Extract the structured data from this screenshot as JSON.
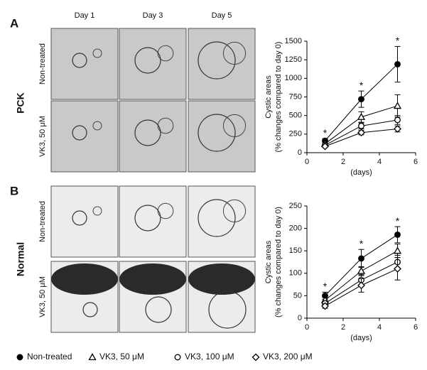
{
  "figure": {
    "panel_a": "A",
    "panel_b": "B",
    "group_a": "PCK",
    "group_b": "Normal",
    "days": [
      "Day 1",
      "Day 3",
      "Day 5"
    ],
    "rows_a": [
      "Non-treated",
      "VK3, 50 μM"
    ],
    "rows_b": [
      "Non-treated",
      "VK3, 50 μM"
    ]
  },
  "chart_data": [
    {
      "type": "line",
      "ylabel": "Cystic areas",
      "ylabel2": "(% changes compared to day 0)",
      "xlabel": "(days)",
      "x": [
        1,
        3,
        5
      ],
      "xlim": [
        0,
        6
      ],
      "xticks": [
        0,
        2,
        4,
        6
      ],
      "ylim": [
        0,
        1500
      ],
      "yticks": [
        0,
        250,
        500,
        750,
        1000,
        1250,
        1500
      ],
      "significance": [
        "*",
        "*",
        "*"
      ],
      "series": [
        {
          "name": "Non-treated",
          "color": "#000000",
          "marker": "filled-circle",
          "values": [
            160,
            720,
            1190
          ],
          "errors": [
            30,
            110,
            240
          ]
        },
        {
          "name": "VK3, 50 μM",
          "color": "#000000",
          "marker": "triangle",
          "values": [
            120,
            480,
            630
          ],
          "errors": [
            20,
            70,
            150
          ]
        },
        {
          "name": "VK3, 100 μM",
          "color": "#000000",
          "marker": "circle",
          "values": [
            100,
            360,
            440
          ],
          "errors": [
            15,
            40,
            60
          ]
        },
        {
          "name": "VK3, 200 μM",
          "color": "#000000",
          "marker": "diamond",
          "values": [
            85,
            270,
            320
          ],
          "errors": [
            15,
            30,
            40
          ]
        }
      ]
    },
    {
      "type": "line",
      "ylabel": "Cystic areas",
      "ylabel2": "(% changes compared to day 0)",
      "xlabel": "(days)",
      "x": [
        1,
        3,
        5
      ],
      "xlim": [
        0,
        6
      ],
      "xticks": [
        0,
        2,
        4,
        6
      ],
      "ylim": [
        0,
        250
      ],
      "yticks": [
        0,
        50,
        100,
        150,
        200,
        250
      ],
      "significance": [
        "*",
        "*",
        "*"
      ],
      "series": [
        {
          "name": "Non-treated",
          "color": "#000000",
          "marker": "filled-circle",
          "values": [
            50,
            133,
            186
          ],
          "errors": [
            8,
            20,
            18
          ]
        },
        {
          "name": "VK3, 50 μM",
          "color": "#000000",
          "marker": "triangle",
          "values": [
            40,
            105,
            150
          ],
          "errors": [
            6,
            10,
            15
          ]
        },
        {
          "name": "VK3, 100 μM",
          "color": "#000000",
          "marker": "circle",
          "values": [
            33,
            85,
            125
          ],
          "errors": [
            6,
            12,
            15
          ]
        },
        {
          "name": "VK3, 200 μM",
          "color": "#000000",
          "marker": "diamond",
          "values": [
            27,
            73,
            110
          ],
          "errors": [
            5,
            15,
            25
          ]
        }
      ]
    }
  ]
}
